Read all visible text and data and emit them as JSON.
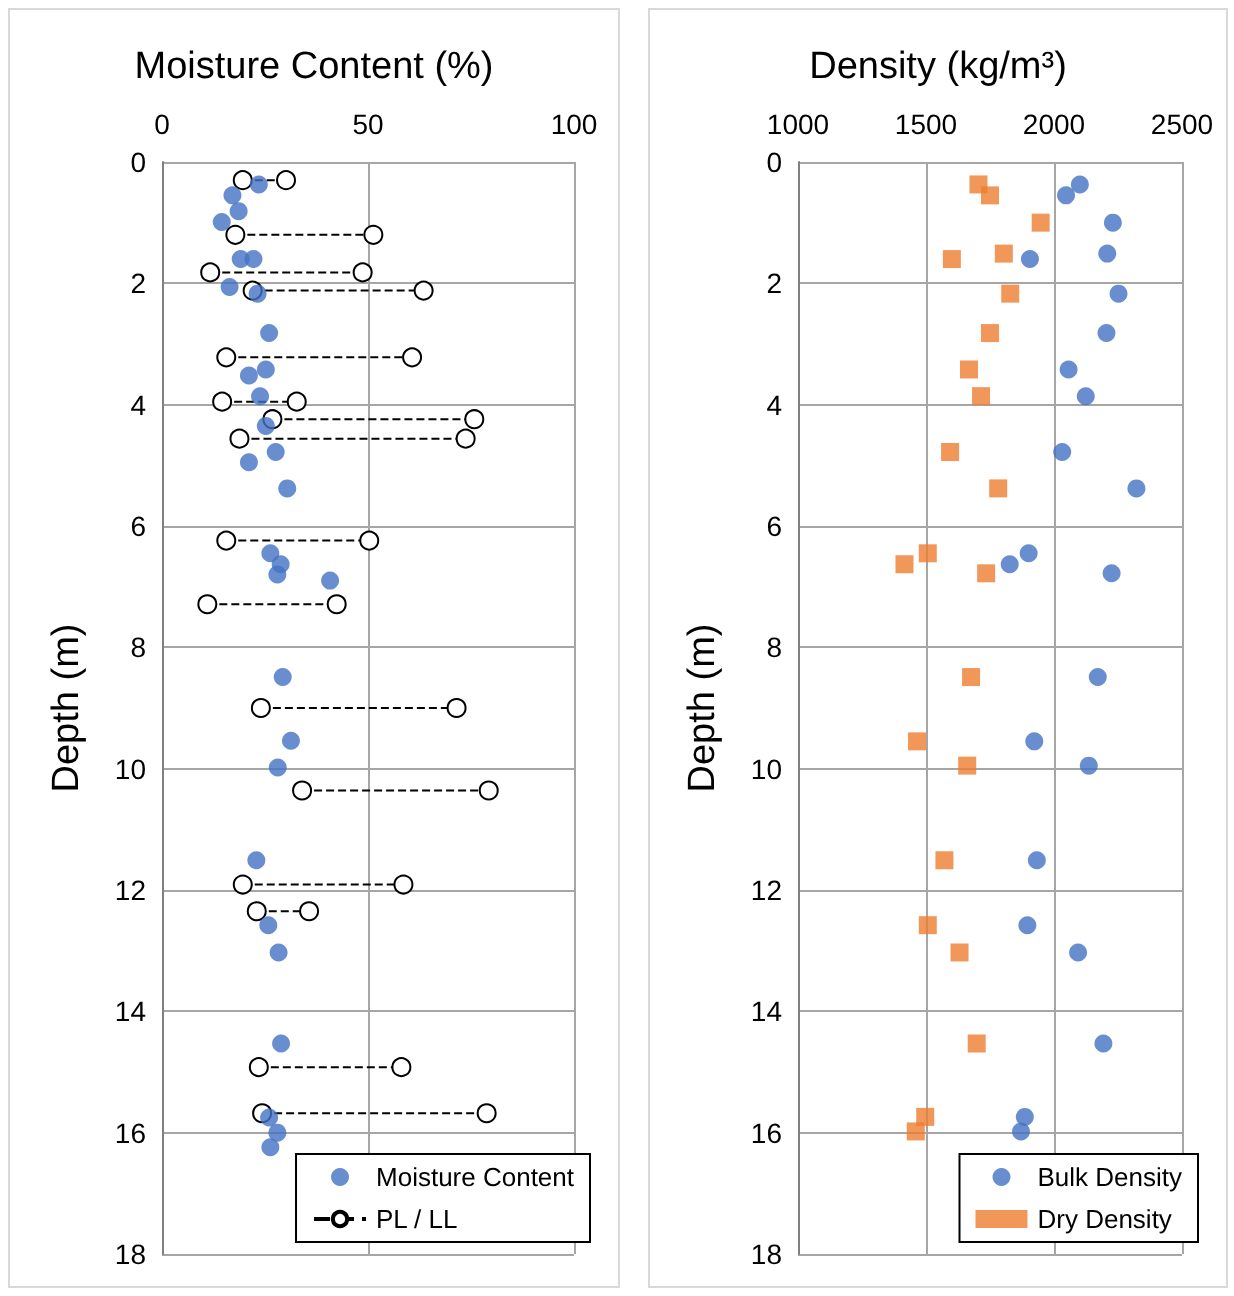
{
  "chart_data": [
    {
      "type": "scatter",
      "title": "Moisture Content (%)",
      "ylabel": "Depth (m)",
      "xlim": [
        0,
        100
      ],
      "xticks": [
        0,
        50,
        100
      ],
      "ylim": [
        18,
        0
      ],
      "yticks": [
        0,
        2,
        4,
        6,
        8,
        10,
        12,
        14,
        16,
        18
      ],
      "grid": true,
      "legend": "bottom right",
      "series": [
        {
          "name": "Moisture Content",
          "type": "scatter",
          "marker": "circle",
          "color": "#4472c4",
          "x": [
            23.5,
            17.1,
            18.6,
            14.5,
            19.1,
            22.2,
            16.4,
            23.2,
            26.0,
            25.2,
            21.1,
            23.8,
            25.2,
            27.6,
            21.1,
            30.4,
            26.3,
            28.8,
            28.0,
            40.8,
            29.3,
            31.3,
            28.1,
            22.9,
            25.8,
            28.3,
            28.9,
            26.0,
            28.0,
            26.3
          ],
          "values": [
            0.37,
            0.55,
            0.81,
            0.99,
            1.6,
            1.6,
            2.06,
            2.17,
            2.82,
            3.42,
            3.52,
            3.86,
            4.35,
            4.78,
            4.95,
            5.38,
            6.45,
            6.63,
            6.8,
            6.9,
            8.49,
            9.54,
            9.98,
            11.51,
            12.58,
            13.03,
            14.53,
            15.75,
            16.0,
            16.24
          ]
        },
        {
          "name": "PL / LL",
          "type": "line",
          "marker": "circle",
          "line_style": "dashed",
          "color": "#000000",
          "x": [
            19.6,
            30.1,
            null,
            17.8,
            51.3,
            null,
            11.7,
            48.7,
            null,
            22.0,
            63.5,
            null,
            15.6,
            60.7,
            null,
            14.6,
            32.7,
            null,
            26.8,
            75.8,
            null,
            18.8,
            73.7,
            null,
            15.6,
            50.3,
            null,
            11.0,
            42.4,
            null,
            24.0,
            71.5,
            null,
            34.0,
            79.3,
            null,
            19.6,
            58.6,
            null,
            23.0,
            35.7,
            null,
            23.5,
            58.1,
            null,
            24.3,
            78.8
          ],
          "values": [
            0.3,
            0.3,
            null,
            1.2,
            1.2,
            null,
            1.82,
            1.82,
            null,
            2.12,
            2.12,
            null,
            3.22,
            3.22,
            null,
            3.95,
            3.95,
            null,
            4.24,
            4.24,
            null,
            4.56,
            4.56,
            null,
            6.24,
            6.24,
            null,
            7.29,
            7.29,
            null,
            9.0,
            9.0,
            null,
            10.36,
            10.36,
            null,
            11.91,
            11.91,
            null,
            12.35,
            12.35,
            null,
            14.92,
            14.92,
            null,
            15.68,
            15.68
          ]
        }
      ]
    },
    {
      "type": "scatter",
      "title": "Density (kg/m³)",
      "ylabel": "Depth (m)",
      "xlim": [
        1000,
        2500
      ],
      "xticks": [
        1000,
        1500,
        2000,
        2500
      ],
      "ylim": [
        18,
        0
      ],
      "yticks": [
        0,
        2,
        4,
        6,
        8,
        10,
        12,
        14,
        16,
        18
      ],
      "grid": true,
      "legend": "bottom right",
      "series": [
        {
          "name": "Bulk Density",
          "marker": "circle",
          "color": "#4472c4",
          "x": [
            2101,
            2047,
            2230,
            2208,
            1906,
            2252,
            2205,
            2057,
            2124,
            2032,
            2322,
            1901,
            1827,
            2225,
            2171,
            1923,
            2136,
            1933,
            1896,
            2094,
            2193,
            1886,
            1871
          ],
          "values": [
            0.37,
            0.55,
            1.0,
            1.51,
            1.6,
            2.17,
            2.82,
            3.42,
            3.86,
            4.78,
            5.38,
            6.45,
            6.63,
            6.78,
            8.49,
            9.55,
            9.95,
            11.51,
            12.58,
            13.03,
            14.53,
            15.74,
            15.98
          ]
        },
        {
          "name": "Dry Density",
          "marker": "square",
          "color": "#ed7d31",
          "x": [
            1705,
            1750,
            1948,
            1804,
            1601,
            1829,
            1750,
            1668,
            1715,
            1594,
            1782,
            1507,
            1416,
            1735,
            1676,
            1465,
            1661,
            1572,
            1507,
            1631,
            1698,
            1497,
            1460
          ],
          "values": [
            0.37,
            0.55,
            1.0,
            1.51,
            1.6,
            2.17,
            2.82,
            3.42,
            3.86,
            4.78,
            5.38,
            6.45,
            6.63,
            6.78,
            8.49,
            9.55,
            9.95,
            11.51,
            12.58,
            13.03,
            14.53,
            15.74,
            15.98
          ]
        }
      ]
    }
  ]
}
